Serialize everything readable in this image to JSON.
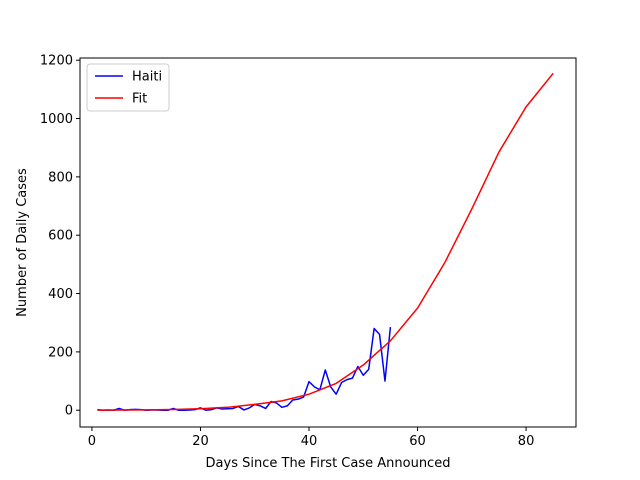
{
  "chart_data": {
    "type": "line",
    "title": "",
    "xlabel": "Days Since The First Case Announced",
    "ylabel": "Number of Daily Cases",
    "xlim": [
      -2.2,
      89.2
    ],
    "ylim": [
      -57.5,
      1207.5
    ],
    "xticks": [
      0,
      20,
      40,
      60,
      80
    ],
    "yticks": [
      0,
      200,
      400,
      600,
      800,
      1000,
      1200
    ],
    "grid": false,
    "legend_position": "upper-left",
    "colors": {
      "Haiti": "#0000ff",
      "Fit": "#ff0000"
    },
    "series": [
      {
        "name": "Haiti",
        "x": [
          1,
          2,
          3,
          4,
          5,
          6,
          7,
          8,
          9,
          10,
          11,
          12,
          13,
          14,
          15,
          16,
          17,
          18,
          19,
          20,
          21,
          22,
          23,
          24,
          25,
          26,
          27,
          28,
          29,
          30,
          31,
          32,
          33,
          34,
          35,
          36,
          37,
          38,
          39,
          40,
          41,
          42,
          43,
          44,
          45,
          46,
          47,
          48,
          49,
          50,
          51,
          52,
          53,
          54,
          55
        ],
        "y": [
          2,
          0,
          1,
          0,
          6,
          0,
          2,
          3,
          2,
          0,
          1,
          1,
          0,
          0,
          6,
          0,
          0,
          1,
          2,
          8,
          0,
          2,
          8,
          4,
          5,
          6,
          13,
          1,
          8,
          20,
          15,
          6,
          30,
          25,
          10,
          15,
          35,
          38,
          45,
          98,
          80,
          70,
          138,
          80,
          55,
          95,
          105,
          110,
          150,
          120,
          140,
          280,
          260,
          100,
          285
        ]
      },
      {
        "name": "Fit",
        "x": [
          1,
          5,
          10,
          15,
          20,
          25,
          30,
          35,
          40,
          45,
          50,
          55,
          60,
          65,
          70,
          75,
          80,
          85
        ],
        "y": [
          0.3,
          0.6,
          1.2,
          2.5,
          5,
          10,
          20,
          32,
          55,
          92,
          155,
          238,
          350,
          505,
          690,
          885,
          1040,
          1155
        ]
      }
    ]
  }
}
